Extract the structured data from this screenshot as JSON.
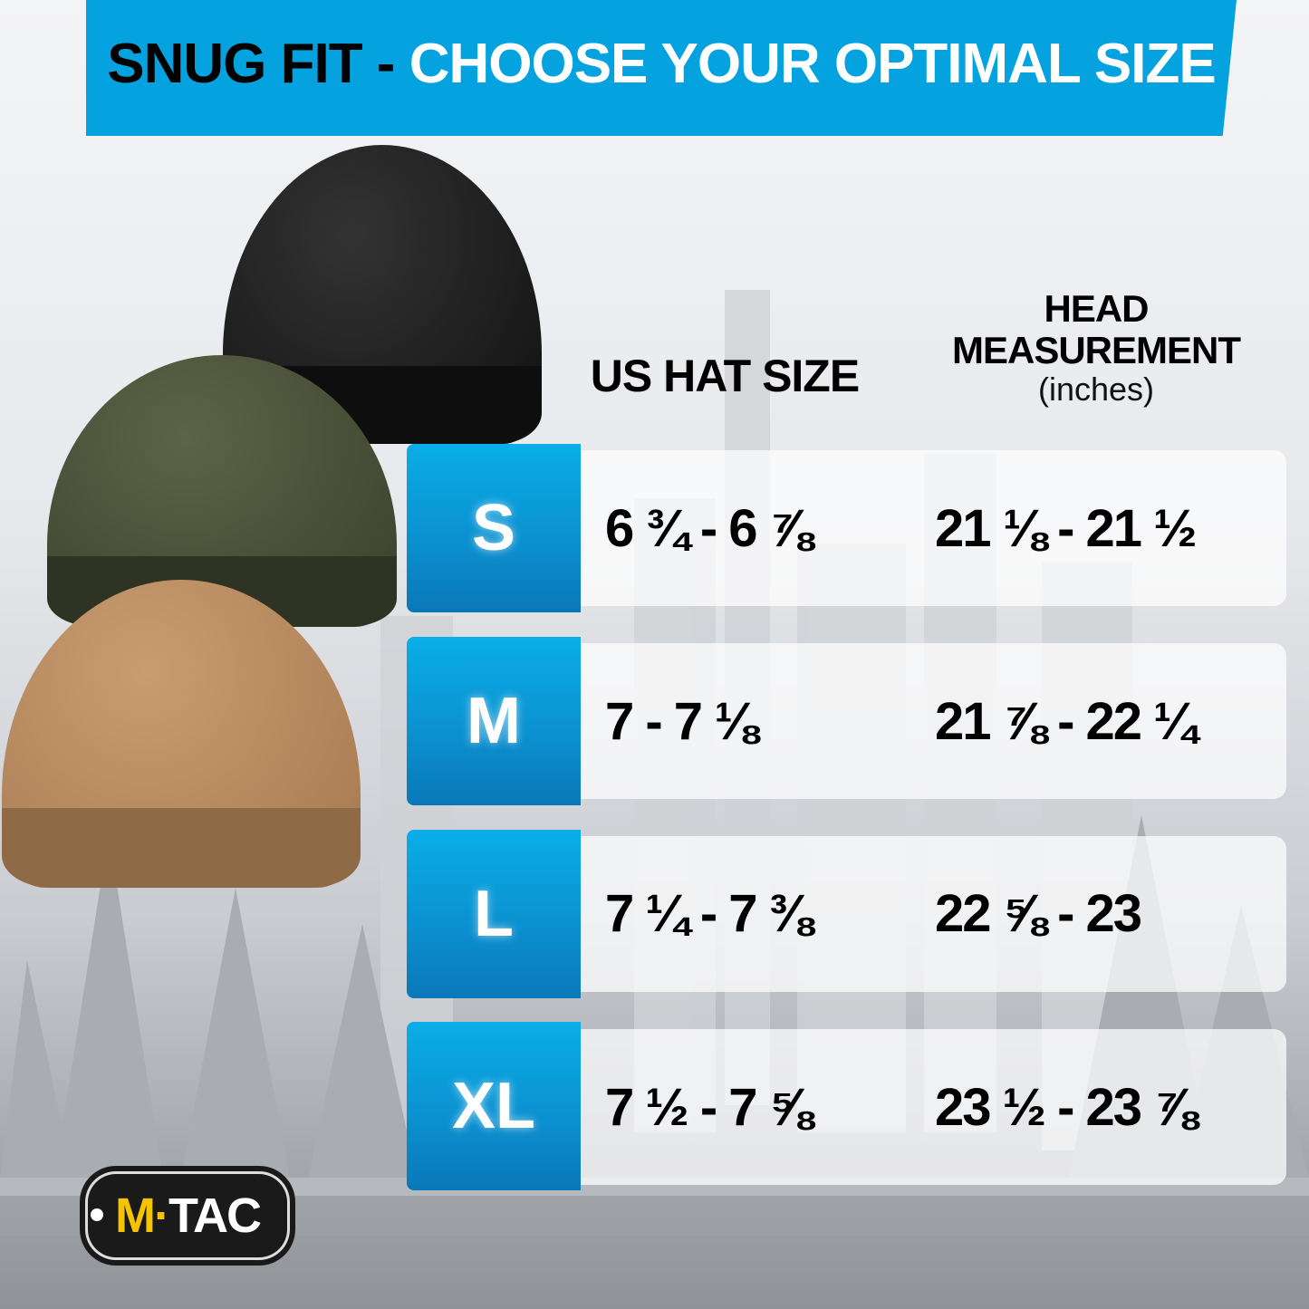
{
  "banner": {
    "title_dark": "SNUG FIT -",
    "title_light": "CHOOSE YOUR OPTIMAL SIZE",
    "color": "#04a3df"
  },
  "columns": {
    "hat_size": "US HAT SIZE",
    "head_line1": "HEAD",
    "head_line2": "MEASUREMENT",
    "head_unit": "(inches)"
  },
  "rows": [
    {
      "size": "S",
      "hat": "6 ¾ - 6 ⅞",
      "head": "21 ⅛ - 21 ½"
    },
    {
      "size": "M",
      "hat": "7 - 7 ⅛",
      "head": "21 ⅞ - 22 ¼"
    },
    {
      "size": "L",
      "hat": "7 ¼ - 7 ⅜",
      "head": "22 ⅝ - 23"
    },
    {
      "size": "XL",
      "hat": "7 ½ - 7 ⅝",
      "head": "23 ½ - 23 ⅞"
    }
  ],
  "hats": [
    {
      "color_name": "black",
      "hex": "#1b1b1b"
    },
    {
      "color_name": "olive",
      "hex": "#4d5339"
    },
    {
      "color_name": "coyote",
      "hex": "#b98a5e"
    }
  ],
  "logo": {
    "text_m": "M",
    "text_dot": "·",
    "text_tac": "TAC"
  }
}
